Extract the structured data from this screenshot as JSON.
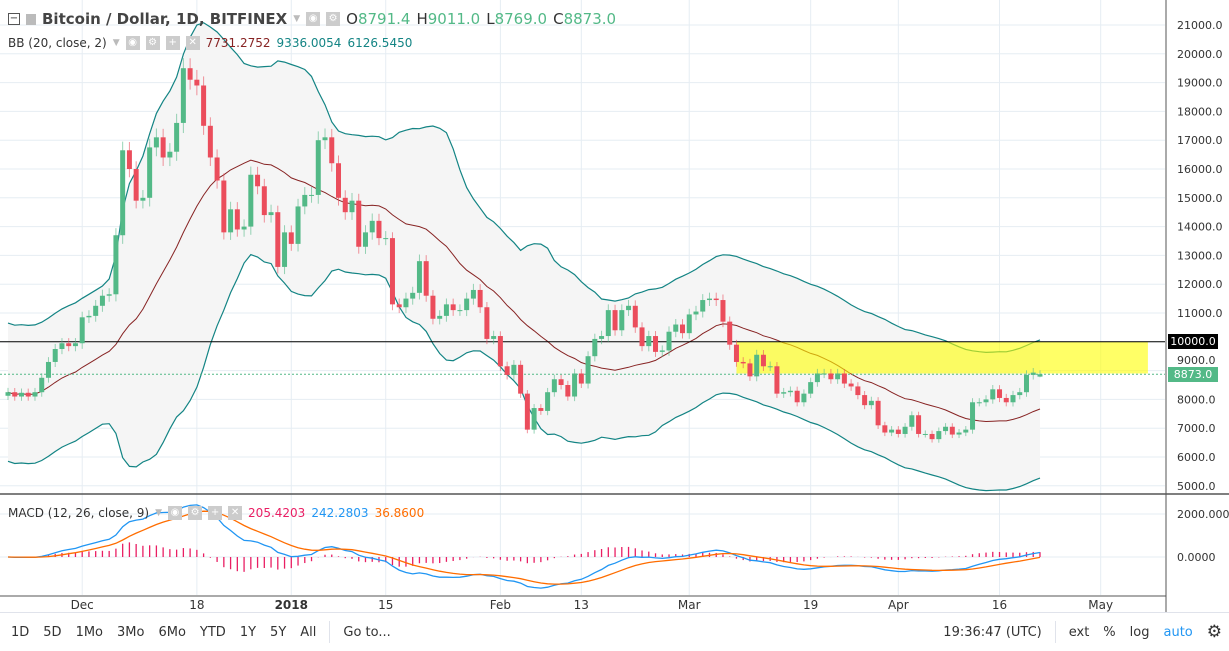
{
  "header": {
    "title": "Bitcoin / Dollar, 1D, BITFINEX",
    "o_label": "O",
    "o": "8791.4",
    "h_label": "H",
    "h": "9011.0",
    "l_label": "L",
    "l": "8769.0",
    "c_label": "C",
    "c": "8873.0"
  },
  "bb": {
    "label": "BB (20, close, 2)",
    "basis": "7731.2752",
    "upper": "9336.0054",
    "lower": "6126.5450"
  },
  "macd": {
    "label": "MACD (12, 26, close, 9)",
    "hist": "205.4203",
    "macd": "242.2803",
    "signal": "36.8600"
  },
  "price_labels": {
    "level": "10000.0",
    "last": "8873.0"
  },
  "toolbar": {
    "ranges": [
      "1D",
      "5D",
      "1Mo",
      "3Mo",
      "6Mo",
      "YTD",
      "1Y",
      "5Y",
      "All"
    ],
    "goto": "Go to...",
    "time": "19:36:47 (UTC)",
    "ext": "ext",
    "percent": "%",
    "log": "log",
    "auto": "auto"
  },
  "colors": {
    "up": "#53b987",
    "down": "#eb4d5c",
    "bb_band": "#138484",
    "bb_basis": "#872323",
    "macd": "#2196f3",
    "signal": "#ff6d00",
    "hist": "#e91e63",
    "zone": "#ffff00"
  },
  "chart_data": {
    "type": "candlestick",
    "price_axis": {
      "ylim": [
        5000,
        21000
      ],
      "ticks": [
        "5000.0",
        "6000.0",
        "7000.0",
        "8000.0",
        "9000.0",
        "10000.0",
        "11000.0",
        "12000.0",
        "13000.0",
        "14000.0",
        "15000.0",
        "16000.0",
        "17000.0",
        "18000.0",
        "19000.0",
        "20000.0",
        "21000.0"
      ]
    },
    "macd_axis": {
      "ticks": [
        "2000.0000",
        "0.0000"
      ]
    },
    "x_ticks": [
      {
        "date": "2017-12-01",
        "label": "Dec"
      },
      {
        "date": "2017-12-18",
        "label": "18"
      },
      {
        "date": "2018-01-01",
        "label": "2018"
      },
      {
        "date": "2018-01-15",
        "label": "15"
      },
      {
        "date": "2018-02-01",
        "label": "Feb"
      },
      {
        "date": "2018-02-13",
        "label": "13"
      },
      {
        "date": "2018-03-01",
        "label": "Mar"
      },
      {
        "date": "2018-03-19",
        "label": "19"
      },
      {
        "date": "2018-04-01",
        "label": "Apr"
      },
      {
        "date": "2018-04-16",
        "label": "16"
      },
      {
        "date": "2018-05-01",
        "label": "May"
      }
    ],
    "closes": [
      {
        "month": "2017-11",
        "start_day": 20,
        "values": [
          8250,
          8100,
          8230,
          8100,
          8250,
          8750,
          9300,
          9750,
          9950,
          9850,
          9950
        ]
      },
      {
        "month": "2017-12",
        "start_day": 1,
        "values": [
          10850,
          10900,
          11250,
          11600,
          11650,
          13700,
          16650,
          16000,
          14900,
          15000,
          16750,
          17100,
          16400,
          16600,
          17600,
          19500,
          19100,
          18900,
          17500,
          16400,
          15600,
          13800,
          14600,
          13900,
          14000,
          15800,
          15400,
          14400,
          14500,
          12600,
          13800
        ]
      },
      {
        "month": "2018-01",
        "start_day": 1,
        "values": [
          13400,
          14700,
          15100,
          15100,
          17000,
          17100,
          16200,
          15000,
          14500,
          14900,
          13300,
          13800,
          14200,
          13600,
          13600,
          11300,
          11200,
          11500,
          11700,
          12800,
          11600,
          10800,
          10900,
          11300,
          11100,
          11100,
          11500,
          11800,
          11200,
          10100,
          10200
        ]
      },
      {
        "month": "2018-02",
        "start_day": 1,
        "values": [
          9150,
          8850,
          9200,
          8200,
          6950,
          7700,
          7600,
          8250,
          8700,
          8500,
          8100,
          8900,
          8550,
          9500,
          10100,
          10200,
          11100,
          10400,
          11100,
          11250,
          10500,
          9850,
          10200,
          9650,
          9700,
          10350,
          10600,
          10300
        ]
      },
      {
        "month": "2018-03",
        "start_day": 1,
        "values": [
          10950,
          11050,
          11450,
          11500,
          11450,
          10700,
          9900,
          9300,
          9250,
          8800,
          9550,
          9150,
          9150,
          8200,
          8250,
          8300,
          7900,
          8200,
          8600,
          8900,
          8900,
          8700,
          8900,
          8550,
          8450,
          8150,
          7800,
          7950,
          7100,
          6850,
          6950
        ]
      },
      {
        "month": "2018-04",
        "start_day": 1,
        "values": [
          6800,
          7050,
          7450,
          6800,
          6800,
          6620,
          6900,
          7050,
          6780,
          6850,
          6950,
          7900,
          7900,
          8000,
          8350,
          8050,
          7900,
          8150,
          8250,
          8850,
          8930,
          8873
        ]
      }
    ],
    "last_candle": {
      "open": 8791.4,
      "high": 9011.0,
      "low": 8769.0,
      "close": 8873.0
    },
    "horizontal_line": 10000,
    "zone": {
      "from": "2018-03-08",
      "to": "2018-05-08",
      "top": 10000,
      "bottom": 8900
    },
    "grid": true
  }
}
